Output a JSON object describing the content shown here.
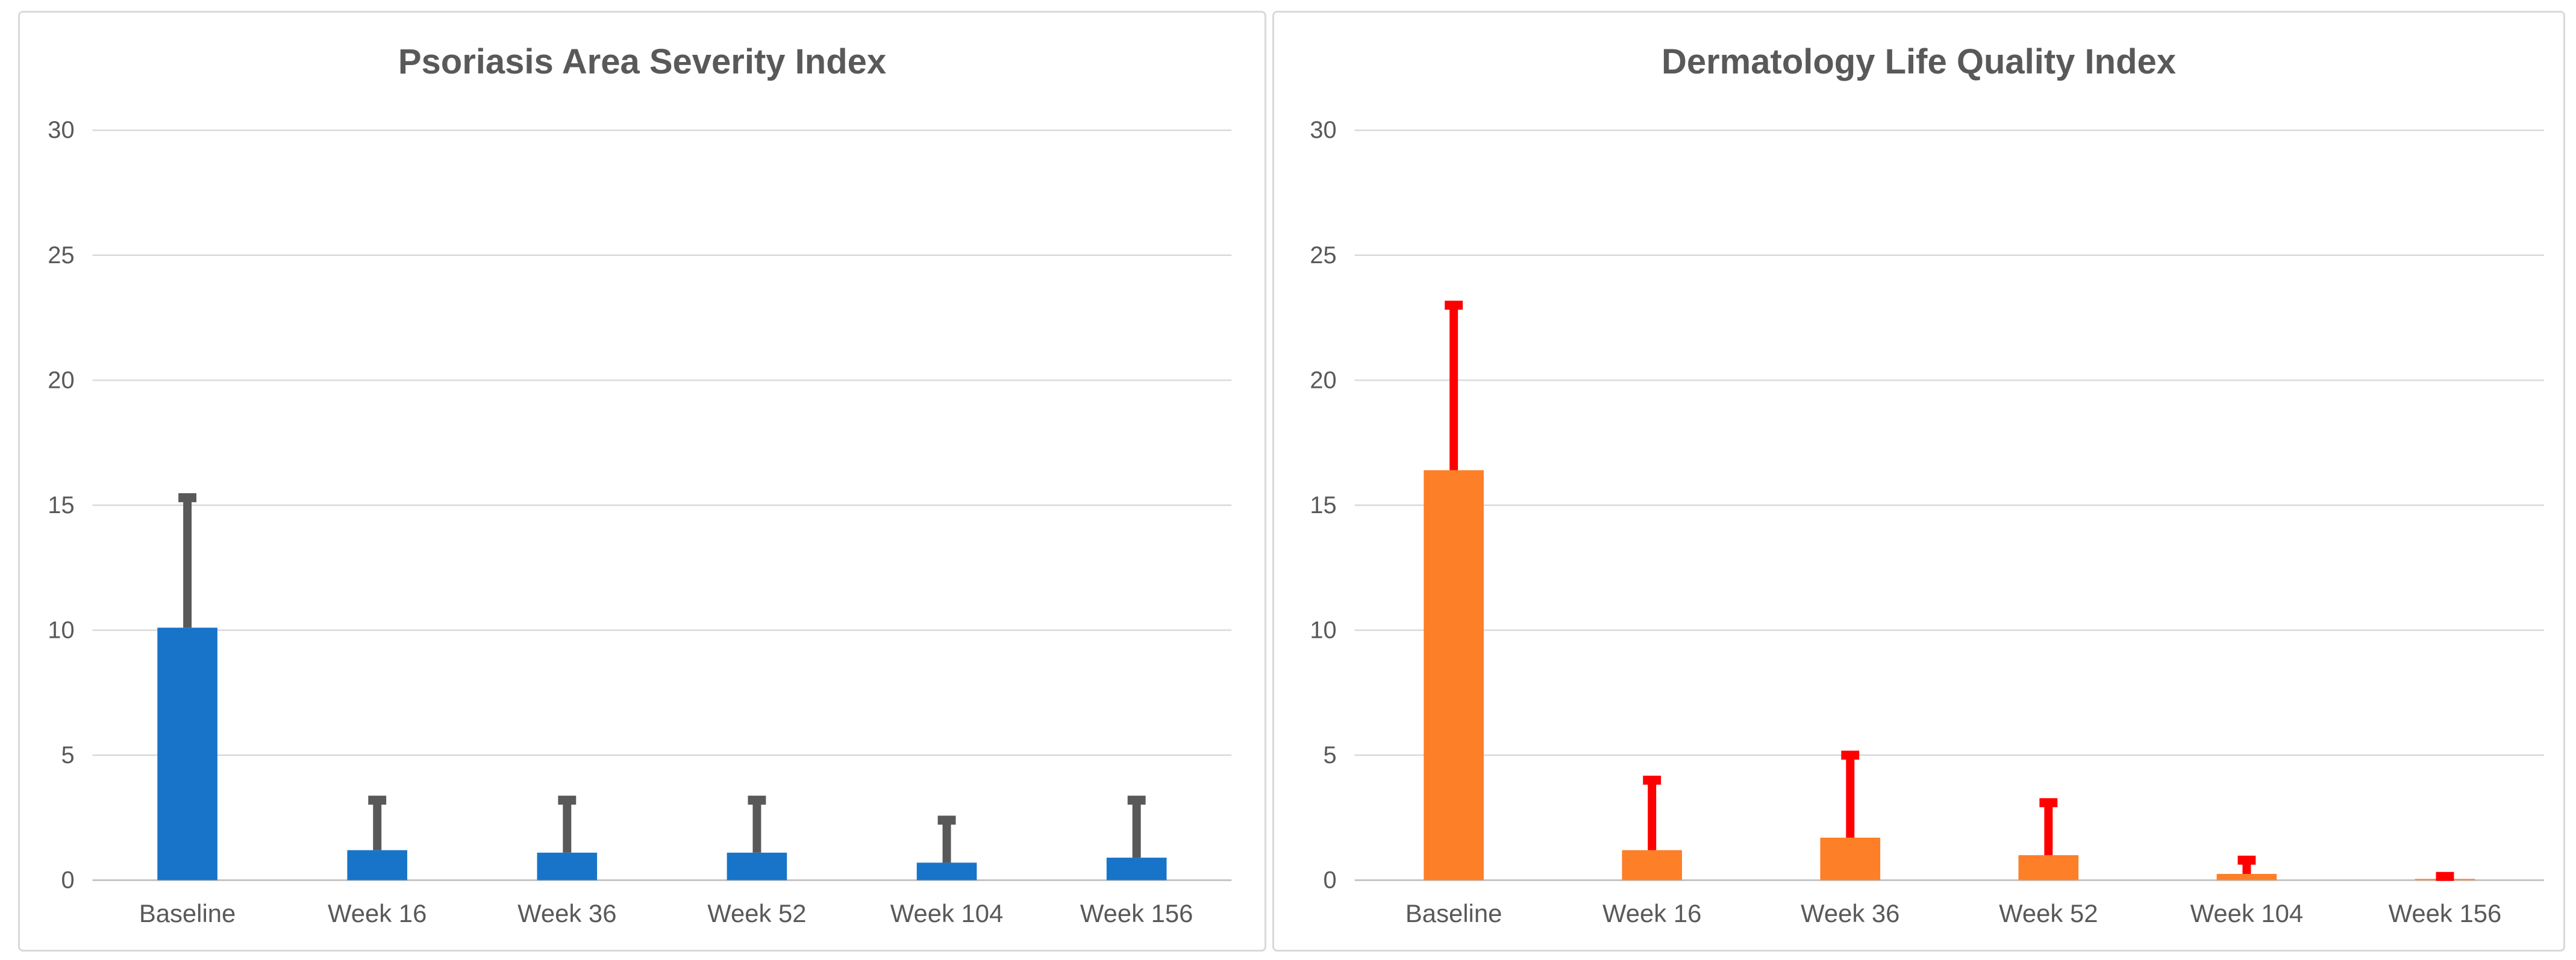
{
  "styles": {
    "text_color": "#595959",
    "gridline_color": "#d9d9d9",
    "axis_line_color": "#c6c6c6",
    "panel_border_color": "#d9d9d9",
    "background": "#ffffff"
  },
  "chart_data": [
    {
      "type": "bar",
      "title": "Psoriasis Area Severity Index",
      "categories": [
        "Baseline",
        "Week 16",
        "Week 36",
        "Week 52",
        "Week 104",
        "Week 156"
      ],
      "values": [
        10.1,
        1.2,
        1.1,
        1.1,
        0.7,
        0.9
      ],
      "error_upper": [
        5.2,
        2.0,
        2.1,
        2.1,
        1.7,
        2.3
      ],
      "bar_color": "#1874C8",
      "error_color": "#595959",
      "xlabel": "",
      "ylabel": "",
      "ylim": [
        0,
        30
      ],
      "ytick_step": 5,
      "yticks": [
        "0",
        "5",
        "10",
        "15",
        "20",
        "25",
        "30"
      ],
      "grid": true,
      "legend_position": "none"
    },
    {
      "type": "bar",
      "title": "Dermatology Life Quality Index",
      "categories": [
        "Baseline",
        "Week 16",
        "Week 36",
        "Week 52",
        "Week 104",
        "Week 156"
      ],
      "values": [
        16.4,
        1.2,
        1.7,
        1.0,
        0.25,
        0.05
      ],
      "error_upper": [
        6.6,
        2.8,
        3.3,
        2.1,
        0.55,
        0.1
      ],
      "bar_color": "#FD7F28",
      "error_color": "#FF0000",
      "xlabel": "",
      "ylabel": "",
      "ylim": [
        0,
        30
      ],
      "ytick_step": 5,
      "yticks": [
        "0",
        "5",
        "10",
        "15",
        "20",
        "25",
        "30"
      ],
      "grid": true,
      "legend_position": "none"
    }
  ]
}
